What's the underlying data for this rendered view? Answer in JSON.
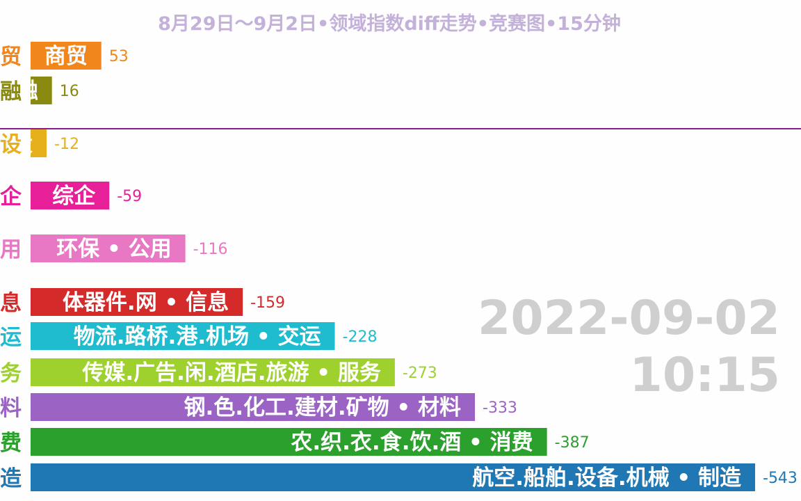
{
  "title": "8月29日～9月2日•领域指数diff走势•竞赛图•15分钟",
  "timestamp": {
    "date": "2022-09-02",
    "time": "10:15"
  },
  "chart_data": {
    "type": "bar",
    "orientation": "horizontal",
    "zero_line_color": "#8b1d8b",
    "bars": [
      {
        "category": "商贸",
        "full_label": "商贸",
        "value": 53,
        "value_label": "53",
        "color": "#f0861c"
      },
      {
        "category": "金融",
        "full_label": "金融",
        "value": 16,
        "value_label": "16",
        "color": "#8a8a10"
      },
      {
        "category": "建设",
        "full_label": "建设",
        "value": -12,
        "value_label": "-12",
        "color": "#e6b01c"
      },
      {
        "category": "综企",
        "full_label": "综企",
        "value": -59,
        "value_label": "-59",
        "color": "#e7209a"
      },
      {
        "category": "公用",
        "full_label": "环保 • 公用",
        "value": -116,
        "value_label": "-116",
        "color": "#e878c4"
      },
      {
        "category": "信息",
        "full_label": "体器件.网 • 信息",
        "value": -159,
        "value_label": "-159",
        "color": "#d42a2a"
      },
      {
        "category": "交运",
        "full_label": "物流.路桥.港.机场 • 交运",
        "value": -228,
        "value_label": "-228",
        "color": "#1fbccf"
      },
      {
        "category": "服务",
        "full_label": "传媒.广告.闲.酒店.旅游 • 服务",
        "value": -273,
        "value_label": "-273",
        "color": "#9ed12e"
      },
      {
        "category": "材料",
        "full_label": "钢.色.化工.建材.矿物 • 材料",
        "value": -333,
        "value_label": "-333",
        "color": "#9b64c4"
      },
      {
        "category": "消费",
        "full_label": "农.织.衣.食.饮.酒 • 消费",
        "value": -387,
        "value_label": "-387",
        "color": "#2ca02c"
      },
      {
        "category": "制造",
        "full_label": "航空.船舶.设备.机械 • 制造",
        "value": -543,
        "value_label": "-543",
        "color": "#1f77b4"
      }
    ],
    "left_labels": [
      "贸",
      "融",
      "设",
      "企",
      "用",
      "息",
      "运",
      "务",
      "料",
      "费",
      "造"
    ]
  }
}
